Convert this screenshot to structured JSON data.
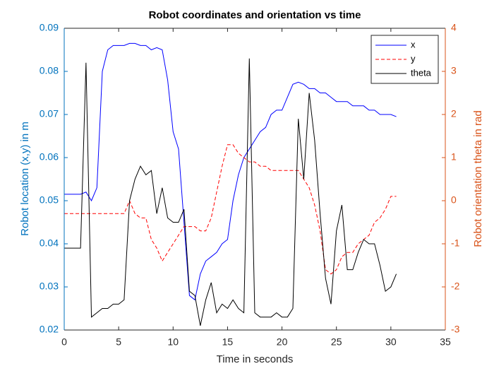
{
  "chart_data": {
    "type": "line",
    "title": "Robot coordinates and orientation vs time",
    "x_label": "Time in seconds",
    "y_label": "Robot location (x,y) in m",
    "y2_label": "Robot orientation theta in rad",
    "x": [
      0,
      0.5,
      1,
      1.5,
      2,
      2.5,
      3,
      3.5,
      4,
      4.5,
      5,
      5.5,
      6,
      6.5,
      7,
      7.5,
      8,
      8.5,
      9,
      9.5,
      10,
      10.5,
      11,
      11.5,
      12,
      12.5,
      13,
      13.5,
      14,
      14.5,
      15,
      15.5,
      16,
      16.5,
      17,
      17.5,
      18,
      18.5,
      19,
      19.5,
      20,
      20.5,
      21,
      21.5,
      22,
      22.5,
      23,
      23.5,
      24,
      24.5,
      25,
      25.5,
      26,
      26.5,
      27,
      27.5,
      28,
      28.5,
      29,
      29.5,
      30,
      30.5
    ],
    "xlim": [
      0,
      35
    ],
    "xticks": [
      0,
      5,
      10,
      15,
      20,
      25,
      30,
      35
    ],
    "ylim": [
      0.02,
      0.09
    ],
    "yticks": [
      0.02,
      0.03,
      0.04,
      0.05,
      0.06,
      0.07,
      0.08,
      0.09
    ],
    "y2lim": [
      -3,
      4
    ],
    "y2ticks": [
      -3,
      -2,
      -1,
      0,
      1,
      2,
      3,
      4
    ],
    "y_axis_color": "#0072bd",
    "y2_axis_color": "#d95319",
    "legend": "upper right",
    "grid": false,
    "series": [
      {
        "name": "x",
        "color": "#0000ff",
        "line_style": "solid",
        "axis": "y",
        "values": [
          0.0515,
          0.0515,
          0.0515,
          0.0515,
          0.052,
          0.05,
          0.053,
          0.08,
          0.085,
          0.086,
          0.086,
          0.086,
          0.0865,
          0.0865,
          0.086,
          0.086,
          0.085,
          0.0855,
          0.085,
          0.078,
          0.066,
          0.062,
          0.045,
          0.028,
          0.027,
          0.033,
          0.036,
          0.037,
          0.038,
          0.04,
          0.041,
          0.05,
          0.056,
          0.06,
          0.062,
          0.064,
          0.066,
          0.067,
          0.07,
          0.071,
          0.071,
          0.074,
          0.077,
          0.0775,
          0.077,
          0.076,
          0.076,
          0.075,
          0.075,
          0.074,
          0.073,
          0.073,
          0.073,
          0.072,
          0.072,
          0.072,
          0.071,
          0.071,
          0.07,
          0.07,
          0.07,
          0.0695
        ]
      },
      {
        "name": "y",
        "color": "#ff0000",
        "line_style": "dashed",
        "axis": "y",
        "values": [
          0.047,
          0.047,
          0.047,
          0.047,
          0.047,
          0.047,
          0.047,
          0.047,
          0.047,
          0.047,
          0.047,
          0.047,
          0.05,
          0.047,
          0.046,
          0.046,
          0.041,
          0.039,
          0.036,
          0.038,
          0.04,
          0.042,
          0.044,
          0.044,
          0.044,
          0.043,
          0.043,
          0.046,
          0.052,
          0.058,
          0.063,
          0.063,
          0.061,
          0.06,
          0.059,
          0.059,
          0.058,
          0.058,
          0.057,
          0.057,
          0.057,
          0.057,
          0.057,
          0.057,
          0.055,
          0.053,
          0.049,
          0.043,
          0.034,
          0.033,
          0.034,
          0.037,
          0.038,
          0.038,
          0.04,
          0.041,
          0.042,
          0.045,
          0.046,
          0.048,
          0.051,
          0.051
        ]
      },
      {
        "name": "theta",
        "color": "#000000",
        "line_style": "solid",
        "axis": "y2",
        "values": [
          -1.1,
          -1.1,
          -1.1,
          -1.1,
          3.2,
          -2.7,
          -2.6,
          -2.5,
          -2.5,
          -2.4,
          -2.4,
          -2.3,
          0.0,
          0.5,
          0.8,
          0.6,
          0.7,
          -0.3,
          0.3,
          -0.4,
          -0.5,
          -0.5,
          -0.2,
          -2.1,
          -2.2,
          -2.9,
          -2.3,
          -1.9,
          -2.6,
          -2.4,
          -2.5,
          -2.3,
          -2.5,
          -2.6,
          3.3,
          -2.6,
          -2.7,
          -2.7,
          -2.7,
          -2.6,
          -2.7,
          -2.7,
          -2.5,
          1.9,
          0.5,
          2.5,
          1.4,
          -0.3,
          -1.8,
          -2.4,
          -0.7,
          -0.1,
          -1.6,
          -1.6,
          -1.2,
          -0.9,
          -1.0,
          -1.0,
          -1.5,
          -2.1,
          -2.0,
          -1.7
        ]
      }
    ]
  }
}
